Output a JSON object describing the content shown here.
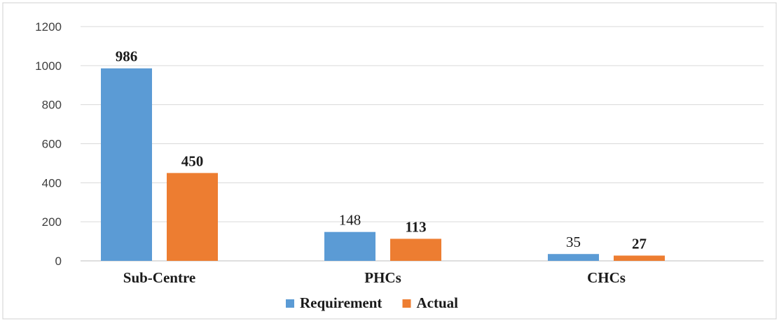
{
  "chart_data": {
    "type": "bar",
    "title": "",
    "xlabel": "",
    "ylabel": "",
    "categories": [
      "Sub-Centre",
      "PHCs",
      "CHCs"
    ],
    "series": [
      {
        "name": "Requirement",
        "values": [
          986,
          148,
          35
        ],
        "color": "#5B9BD5"
      },
      {
        "name": "Actual",
        "values": [
          450,
          113,
          27
        ],
        "color": "#ED7D31"
      }
    ],
    "ylim": [
      0,
      1200
    ],
    "yticks": [
      0,
      200,
      400,
      600,
      800,
      1000,
      1200
    ],
    "grid": true,
    "legend": "bottom-center"
  }
}
